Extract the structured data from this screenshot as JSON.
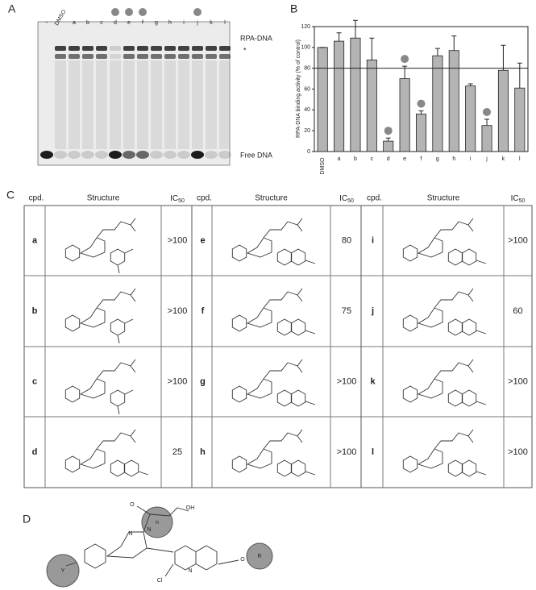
{
  "panel_a": {
    "label": "A",
    "lanes": [
      "-",
      "DMSO",
      "a",
      "b",
      "c",
      "d",
      "e",
      "f",
      "g",
      "h",
      "i",
      "j",
      "k",
      "l"
    ],
    "band_labels": [
      "RPA-DNA",
      "*",
      "Free DNA"
    ],
    "highlight": [
      5,
      6,
      7,
      11
    ]
  },
  "chart_data": {
    "type": "bar",
    "label": "B",
    "ylabel": "RPA-DNA binding activity (% of control)",
    "categories": [
      "DMSO",
      "a",
      "b",
      "c",
      "d",
      "e",
      "f",
      "g",
      "h",
      "i",
      "j",
      "k",
      "l"
    ],
    "values": [
      100,
      106,
      109,
      88,
      10,
      70,
      36,
      92,
      97,
      63,
      25,
      78,
      61
    ],
    "errors": [
      0,
      8,
      17,
      21,
      3,
      12,
      3,
      7,
      14,
      2,
      6,
      24,
      24
    ],
    "color": "#b4b4b4",
    "ylim": [
      0,
      120
    ],
    "yticks": [
      0,
      20,
      40,
      60,
      80,
      100,
      120
    ],
    "reference_line": 80,
    "highlight": [
      4,
      5,
      6,
      10
    ]
  },
  "table": {
    "label": "C",
    "header": [
      "cpd.",
      "Structure",
      {
        "text": "IC",
        "sub": "50"
      }
    ],
    "groups": [
      {
        "rows": [
          [
            "a",
            ">100"
          ],
          [
            "b",
            ">100"
          ],
          [
            "c",
            ">100"
          ],
          [
            "d",
            "25"
          ]
        ]
      },
      {
        "rows": [
          [
            "e",
            "80"
          ],
          [
            "f",
            "75"
          ],
          [
            "g",
            ">100"
          ],
          [
            "h",
            ">100"
          ]
        ]
      },
      {
        "rows": [
          [
            "i",
            ">100"
          ],
          [
            "j",
            "60"
          ],
          [
            "k",
            ">100"
          ],
          [
            "l",
            ">100"
          ]
        ]
      }
    ]
  },
  "panel_d": {
    "label": "D",
    "atoms": [
      "O",
      "OH",
      "N",
      "N",
      "N",
      "Cl",
      "O"
    ],
    "groups": [
      "Y",
      "n",
      "R"
    ]
  }
}
